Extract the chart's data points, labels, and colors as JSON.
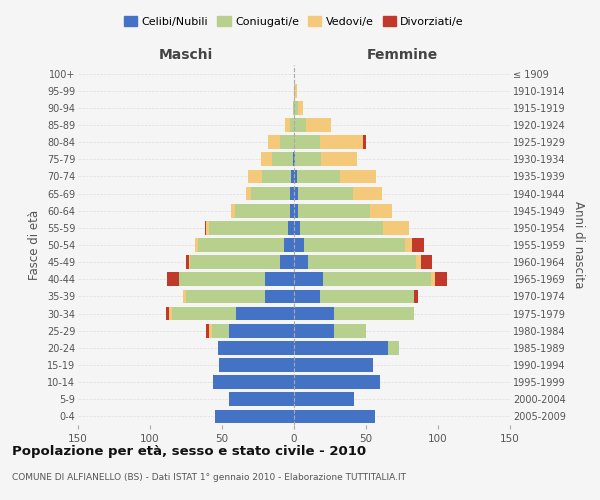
{
  "age_groups": [
    "0-4",
    "5-9",
    "10-14",
    "15-19",
    "20-24",
    "25-29",
    "30-34",
    "35-39",
    "40-44",
    "45-49",
    "50-54",
    "55-59",
    "60-64",
    "65-69",
    "70-74",
    "75-79",
    "80-84",
    "85-89",
    "90-94",
    "95-99",
    "100+"
  ],
  "birth_years": [
    "2005-2009",
    "2000-2004",
    "1995-1999",
    "1990-1994",
    "1985-1989",
    "1980-1984",
    "1975-1979",
    "1970-1974",
    "1965-1969",
    "1960-1964",
    "1955-1959",
    "1950-1954",
    "1945-1949",
    "1940-1944",
    "1935-1939",
    "1930-1934",
    "1925-1929",
    "1920-1924",
    "1915-1919",
    "1910-1914",
    "≤ 1909"
  ],
  "male": {
    "celibi": [
      55,
      45,
      56,
      52,
      53,
      45,
      40,
      20,
      20,
      10,
      7,
      4,
      3,
      3,
      2,
      1,
      0,
      0,
      0,
      0,
      0
    ],
    "coniugati": [
      0,
      0,
      0,
      0,
      0,
      12,
      45,
      55,
      60,
      62,
      60,
      55,
      38,
      27,
      20,
      14,
      10,
      3,
      1,
      0,
      0
    ],
    "vedovi": [
      0,
      0,
      0,
      0,
      0,
      2,
      2,
      2,
      0,
      1,
      2,
      2,
      3,
      3,
      10,
      8,
      8,
      3,
      0,
      0,
      0
    ],
    "divorziati": [
      0,
      0,
      0,
      0,
      0,
      2,
      2,
      0,
      8,
      2,
      0,
      1,
      0,
      0,
      0,
      0,
      0,
      0,
      0,
      0,
      0
    ]
  },
  "female": {
    "nubili": [
      56,
      42,
      60,
      55,
      65,
      28,
      28,
      18,
      20,
      10,
      7,
      4,
      3,
      3,
      2,
      1,
      0,
      0,
      0,
      0,
      0
    ],
    "coniugate": [
      0,
      0,
      0,
      0,
      8,
      22,
      55,
      65,
      75,
      75,
      70,
      58,
      50,
      38,
      30,
      18,
      18,
      8,
      3,
      1,
      0
    ],
    "vedove": [
      0,
      0,
      0,
      0,
      0,
      0,
      0,
      0,
      3,
      3,
      5,
      18,
      15,
      20,
      25,
      25,
      30,
      18,
      3,
      1,
      0
    ],
    "divorziate": [
      0,
      0,
      0,
      0,
      0,
      0,
      0,
      3,
      8,
      8,
      8,
      0,
      0,
      0,
      0,
      0,
      2,
      0,
      0,
      0,
      0
    ]
  },
  "colors": {
    "celibi_nubili": "#4472c4",
    "coniugati": "#b8d08e",
    "vedovi": "#f5c97a",
    "divorziati": "#c0392b"
  },
  "title": "Popolazione per età, sesso e stato civile - 2010",
  "subtitle": "COMUNE DI ALFIANELLO (BS) - Dati ISTAT 1° gennaio 2010 - Elaborazione TUTTITALIA.IT",
  "xlabel_left": "Maschi",
  "xlabel_right": "Femmine",
  "ylabel_left": "Fasce di età",
  "ylabel_right": "Anni di nascita",
  "xlim": 150,
  "bg_color": "#f5f5f5",
  "grid_color": "#dddddd",
  "legend_labels": [
    "Celibi/Nubili",
    "Coniugati/e",
    "Vedovi/e",
    "Divorziati/e"
  ]
}
